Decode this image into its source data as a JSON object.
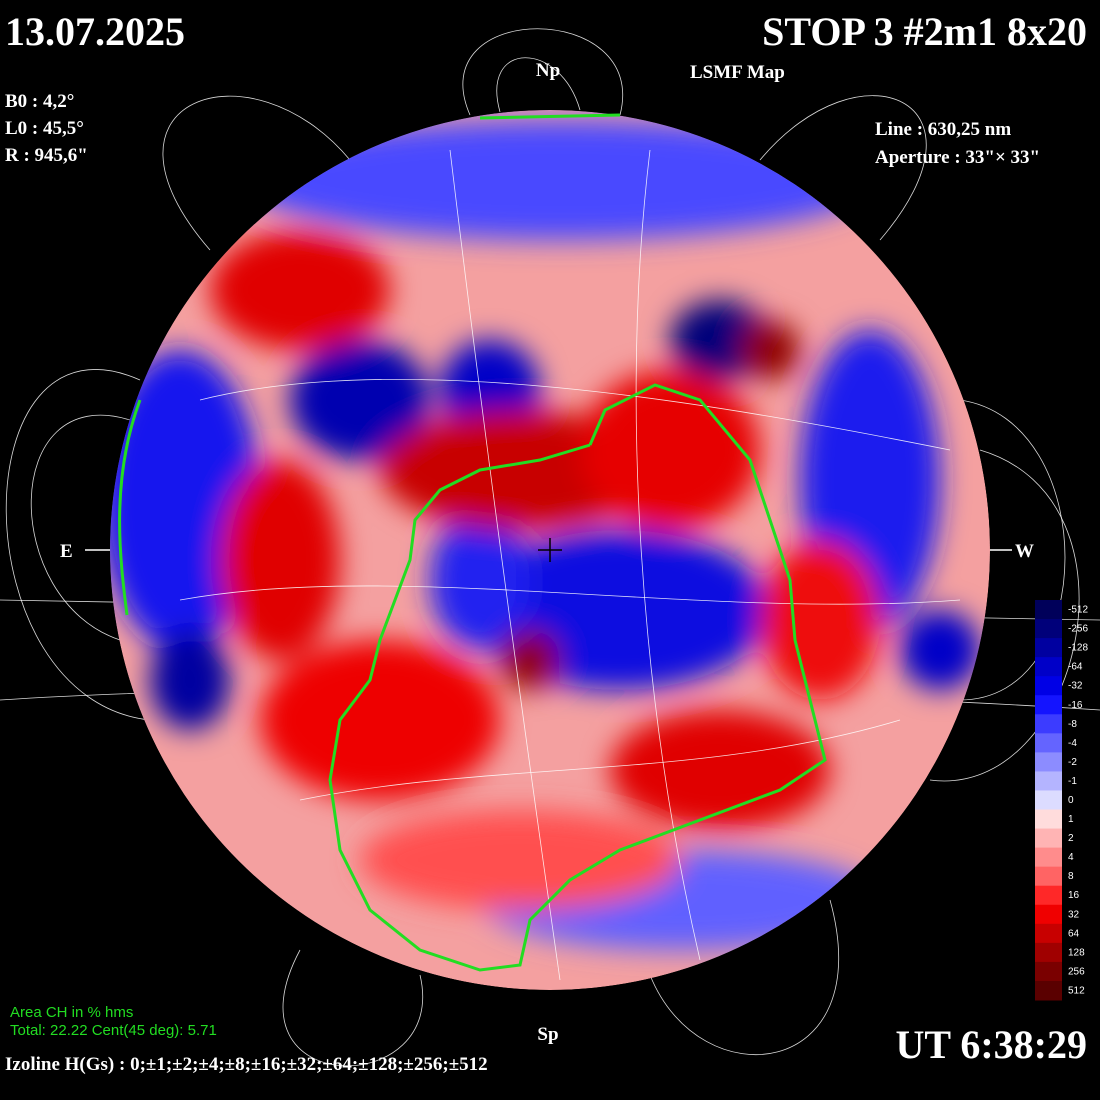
{
  "header": {
    "date": "13.07.2025",
    "title": "STOP 3 #2m1 8x20",
    "subtitle": "LSMF  Map",
    "time": "UT 6:38:29"
  },
  "parameters": {
    "b0": "B0 : 4,2°",
    "l0": "L0 : 45,5°",
    "r": "R  : 945,6\"",
    "line": "Line :  630,25 nm",
    "aperture": "Aperture : 33\"× 33\""
  },
  "markers": {
    "north": "Np",
    "south": "Sp",
    "east": "E",
    "west": "W"
  },
  "area": {
    "title": "Area CH in % hms",
    "values": "Total: 22.22    Cent(45 deg): 5.71"
  },
  "izoline": "Izoline H(Gs) : 0;±1;±2;±4;±8;±16;±32;±64;±128;±256;±512",
  "colorbar": {
    "levels": [
      -512,
      -256,
      -128,
      -64,
      -32,
      -16,
      -8,
      -4,
      -2,
      -1,
      0,
      1,
      2,
      4,
      8,
      16,
      32,
      64,
      128,
      256,
      512
    ],
    "colors": [
      "#00005a",
      "#00007a",
      "#0000a0",
      "#0000c8",
      "#0000e6",
      "#1414ff",
      "#3c3cff",
      "#6464ff",
      "#8c8cff",
      "#b4b4ff",
      "#dcdcff",
      "#ffdcdc",
      "#ffb4b4",
      "#ff8c8c",
      "#ff6464",
      "#ff2828",
      "#f00000",
      "#c80000",
      "#a00000",
      "#7a0000",
      "#5a0000"
    ]
  }
}
